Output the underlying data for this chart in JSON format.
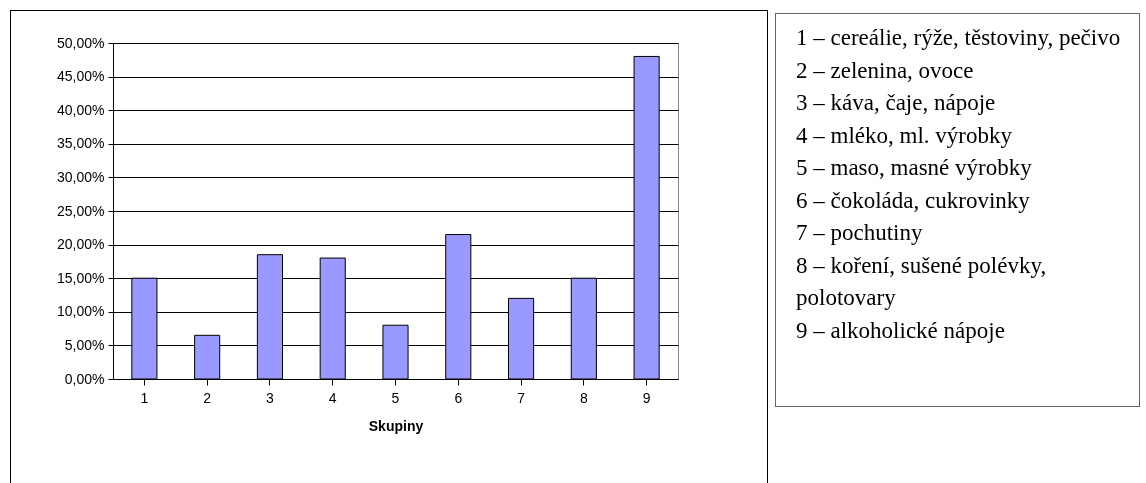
{
  "chart_data": {
    "type": "bar",
    "xlabel": "Skupiny",
    "categories": [
      "1",
      "2",
      "3",
      "4",
      "5",
      "6",
      "7",
      "8",
      "9"
    ],
    "values": [
      15,
      6.5,
      18.5,
      18,
      8,
      21.5,
      12,
      15,
      48
    ],
    "color": "#9999ff",
    "ylim": [
      0,
      50
    ],
    "yticks": [
      {
        "value": 0,
        "label": "0,00%"
      },
      {
        "value": 5,
        "label": "5,00%"
      },
      {
        "value": 10,
        "label": "10,00%"
      },
      {
        "value": 15,
        "label": "15,00%"
      },
      {
        "value": 20,
        "label": "20,00%"
      },
      {
        "value": 25,
        "label": "25,00%"
      },
      {
        "value": 30,
        "label": "30,00%"
      },
      {
        "value": 35,
        "label": "35,00%"
      },
      {
        "value": 40,
        "label": "40,00%"
      },
      {
        "value": 45,
        "label": "45,00%"
      },
      {
        "value": 50,
        "label": "50,00%"
      }
    ],
    "grid": "y",
    "annotations": [
      "1 – cereálie, rýže, těstoviny, pečivo",
      "2 – zelenina, ovoce",
      "3 – káva, čaje, nápoje",
      "4 – mléko, ml. výrobky",
      "5 – maso, masné výrobky",
      "6 – čokoláda, cukrovinky",
      "7 – pochutiny",
      "8 – koření, sušené polévky, polotovary",
      "9 – alkoholické nápoje"
    ]
  }
}
